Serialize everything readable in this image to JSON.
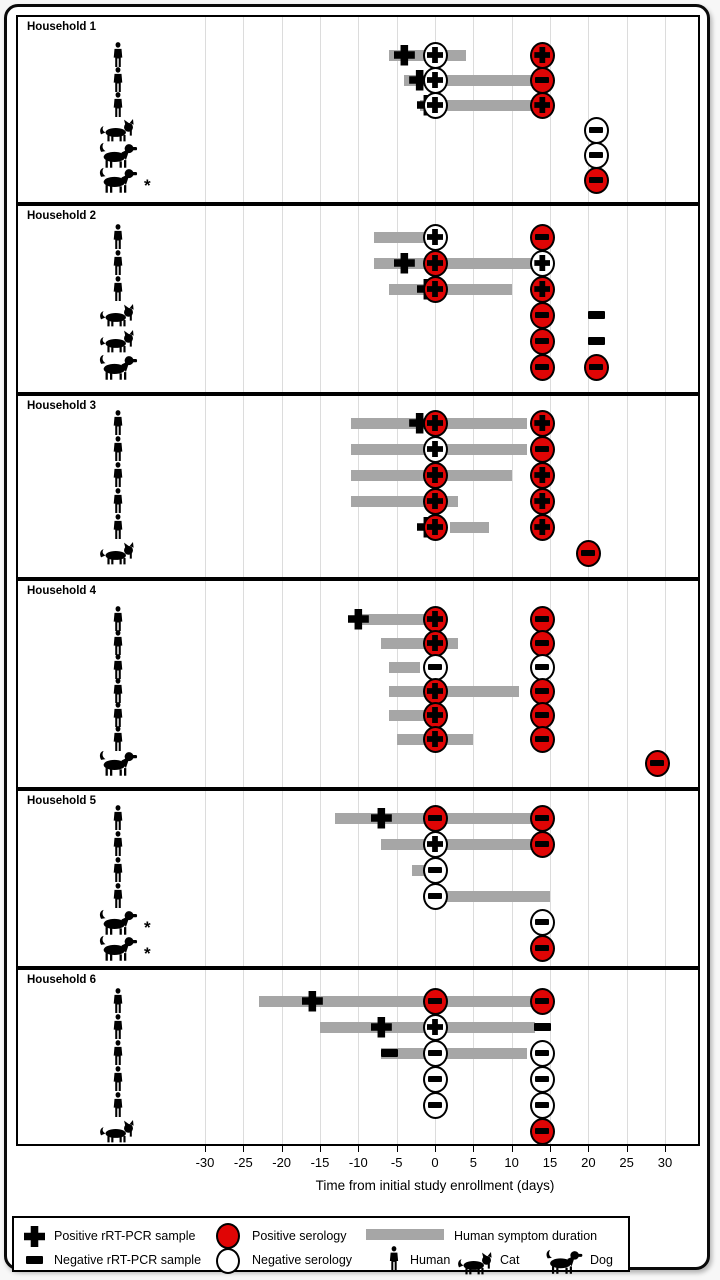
{
  "chart_data": {
    "type": "timeline",
    "axis": {
      "label": "Time from initial study enrollment (days)",
      "ticks": [
        -30,
        -25,
        -20,
        -15,
        -10,
        -5,
        0,
        5,
        10,
        15,
        20,
        25,
        30
      ],
      "range": [
        -30,
        30
      ],
      "grid": true
    },
    "marker_types": {
      "pcr_pos": "Positive rRT-PCR sample (black cross)",
      "pcr_neg": "Negative rRT-PCR sample (black bar)",
      "sero_pos_pcr_pos": "Positive serology circle containing positive rRT-PCR cross",
      "sero_pos_pcr_neg": "Positive serology circle containing negative rRT-PCR bar",
      "sero_neg_pcr_pos": "Negative serology circle containing positive rRT-PCR cross",
      "sero_neg_pcr_neg": "Negative serology circle containing negative rRT-PCR bar"
    },
    "households": [
      {
        "name": "Household 1",
        "rows": [
          {
            "species": "human",
            "asterisk": false,
            "symptom_days": [
              -6,
              4
            ],
            "markers": [
              {
                "day": -4,
                "type": "pcr_pos"
              },
              {
                "day": 0,
                "type": "sero_neg_pcr_pos"
              },
              {
                "day": 14,
                "type": "sero_pos_pcr_pos"
              }
            ]
          },
          {
            "species": "human",
            "asterisk": false,
            "symptom_days": [
              -4,
              13
            ],
            "markers": [
              {
                "day": -2,
                "type": "pcr_pos"
              },
              {
                "day": 0,
                "type": "sero_neg_pcr_pos"
              },
              {
                "day": 14,
                "type": "sero_pos_pcr_neg"
              }
            ]
          },
          {
            "species": "human",
            "asterisk": false,
            "symptom_days": [
              -2,
              13
            ],
            "markers": [
              {
                "day": -1,
                "type": "pcr_pos"
              },
              {
                "day": 0,
                "type": "sero_neg_pcr_pos"
              },
              {
                "day": 14,
                "type": "sero_pos_pcr_pos"
              }
            ]
          },
          {
            "species": "cat",
            "asterisk": false,
            "symptom_days": null,
            "markers": [
              {
                "day": 21,
                "type": "sero_neg_pcr_neg"
              }
            ]
          },
          {
            "species": "dog",
            "asterisk": false,
            "symptom_days": null,
            "markers": [
              {
                "day": 21,
                "type": "sero_neg_pcr_neg"
              }
            ]
          },
          {
            "species": "dog",
            "asterisk": true,
            "symptom_days": null,
            "markers": [
              {
                "day": 21,
                "type": "sero_pos_pcr_neg"
              }
            ]
          }
        ]
      },
      {
        "name": "Household 2",
        "rows": [
          {
            "species": "human",
            "asterisk": false,
            "symptom_days": [
              -8,
              0
            ],
            "markers": [
              {
                "day": 0,
                "type": "sero_neg_pcr_pos"
              },
              {
                "day": 14,
                "type": "sero_pos_pcr_neg"
              }
            ]
          },
          {
            "species": "human",
            "asterisk": false,
            "symptom_days": [
              -8,
              13
            ],
            "markers": [
              {
                "day": -4,
                "type": "pcr_pos"
              },
              {
                "day": 0,
                "type": "sero_pos_pcr_pos"
              },
              {
                "day": 14,
                "type": "sero_neg_pcr_pos"
              }
            ]
          },
          {
            "species": "human",
            "asterisk": false,
            "symptom_days": [
              -6,
              10
            ],
            "markers": [
              {
                "day": -1,
                "type": "pcr_pos"
              },
              {
                "day": 0,
                "type": "sero_pos_pcr_pos"
              },
              {
                "day": 14,
                "type": "sero_pos_pcr_pos"
              }
            ]
          },
          {
            "species": "cat",
            "asterisk": false,
            "symptom_days": null,
            "markers": [
              {
                "day": 14,
                "type": "sero_pos_pcr_neg"
              },
              {
                "day": 21,
                "type": "pcr_neg"
              }
            ]
          },
          {
            "species": "cat",
            "asterisk": false,
            "symptom_days": null,
            "markers": [
              {
                "day": 14,
                "type": "sero_pos_pcr_neg"
              },
              {
                "day": 21,
                "type": "pcr_neg"
              }
            ]
          },
          {
            "species": "dog",
            "asterisk": false,
            "symptom_days": null,
            "markers": [
              {
                "day": 14,
                "type": "sero_pos_pcr_neg"
              },
              {
                "day": 21,
                "type": "sero_pos_pcr_neg"
              }
            ]
          }
        ]
      },
      {
        "name": "Household 3",
        "rows": [
          {
            "species": "human",
            "asterisk": false,
            "symptom_days": [
              -11,
              12
            ],
            "markers": [
              {
                "day": -2,
                "type": "pcr_pos"
              },
              {
                "day": 0,
                "type": "sero_pos_pcr_pos"
              },
              {
                "day": 14,
                "type": "sero_pos_pcr_pos"
              }
            ]
          },
          {
            "species": "human",
            "asterisk": false,
            "symptom_days": [
              -11,
              12
            ],
            "markers": [
              {
                "day": 0,
                "type": "sero_neg_pcr_pos"
              },
              {
                "day": 14,
                "type": "sero_pos_pcr_neg"
              }
            ]
          },
          {
            "species": "human",
            "asterisk": false,
            "symptom_days": [
              -11,
              10
            ],
            "markers": [
              {
                "day": 0,
                "type": "sero_pos_pcr_pos"
              },
              {
                "day": 14,
                "type": "sero_pos_pcr_pos"
              }
            ]
          },
          {
            "species": "human",
            "asterisk": false,
            "symptom_days": [
              -11,
              3
            ],
            "markers": [
              {
                "day": 0,
                "type": "sero_pos_pcr_pos"
              },
              {
                "day": 14,
                "type": "sero_pos_pcr_pos"
              }
            ]
          },
          {
            "species": "human",
            "asterisk": false,
            "symptom_days": [
              2,
              7
            ],
            "markers": [
              {
                "day": -1,
                "type": "pcr_pos"
              },
              {
                "day": 0,
                "type": "sero_pos_pcr_pos"
              },
              {
                "day": 14,
                "type": "sero_pos_pcr_pos"
              }
            ]
          },
          {
            "species": "cat",
            "asterisk": false,
            "symptom_days": null,
            "markers": [
              {
                "day": 20,
                "type": "sero_pos_pcr_neg"
              }
            ]
          }
        ]
      },
      {
        "name": "Household 4",
        "rows": [
          {
            "species": "human",
            "asterisk": false,
            "symptom_days": [
              -10,
              0
            ],
            "markers": [
              {
                "day": -10,
                "type": "pcr_pos"
              },
              {
                "day": 0,
                "type": "sero_pos_pcr_pos"
              },
              {
                "day": 14,
                "type": "sero_pos_pcr_neg"
              }
            ]
          },
          {
            "species": "human",
            "asterisk": false,
            "symptom_days": [
              -7,
              3
            ],
            "markers": [
              {
                "day": 0,
                "type": "sero_pos_pcr_pos"
              },
              {
                "day": 14,
                "type": "sero_pos_pcr_neg"
              }
            ]
          },
          {
            "species": "human",
            "asterisk": false,
            "symptom_days": [
              -6,
              -2
            ],
            "markers": [
              {
                "day": 0,
                "type": "sero_neg_pcr_neg"
              },
              {
                "day": 14,
                "type": "sero_neg_pcr_neg"
              }
            ]
          },
          {
            "species": "human",
            "asterisk": false,
            "symptom_days": [
              -6,
              11
            ],
            "markers": [
              {
                "day": 0,
                "type": "sero_pos_pcr_pos"
              },
              {
                "day": 14,
                "type": "sero_pos_pcr_neg"
              }
            ]
          },
          {
            "species": "human",
            "asterisk": false,
            "symptom_days": [
              -6,
              0
            ],
            "markers": [
              {
                "day": 0,
                "type": "sero_pos_pcr_pos"
              },
              {
                "day": 14,
                "type": "sero_pos_pcr_neg"
              }
            ]
          },
          {
            "species": "human",
            "asterisk": false,
            "symptom_days": [
              -5,
              5
            ],
            "markers": [
              {
                "day": 0,
                "type": "sero_pos_pcr_pos"
              },
              {
                "day": 14,
                "type": "sero_pos_pcr_neg"
              }
            ]
          },
          {
            "species": "dog",
            "asterisk": false,
            "symptom_days": null,
            "markers": [
              {
                "day": 29,
                "type": "sero_pos_pcr_neg"
              }
            ]
          }
        ]
      },
      {
        "name": "Household 5",
        "rows": [
          {
            "species": "human",
            "asterisk": false,
            "symptom_days": [
              -13,
              13
            ],
            "markers": [
              {
                "day": -7,
                "type": "pcr_pos"
              },
              {
                "day": 0,
                "type": "sero_pos_pcr_neg"
              },
              {
                "day": 14,
                "type": "sero_pos_pcr_neg"
              }
            ]
          },
          {
            "species": "human",
            "asterisk": false,
            "symptom_days": [
              -7,
              13
            ],
            "markers": [
              {
                "day": 0,
                "type": "sero_neg_pcr_pos"
              },
              {
                "day": 14,
                "type": "sero_pos_pcr_neg"
              }
            ]
          },
          {
            "species": "human",
            "asterisk": false,
            "symptom_days": [
              -3,
              0
            ],
            "markers": [
              {
                "day": 0,
                "type": "sero_neg_pcr_neg"
              }
            ]
          },
          {
            "species": "human",
            "asterisk": false,
            "symptom_days": [
              0,
              15
            ],
            "markers": [
              {
                "day": 0,
                "type": "sero_neg_pcr_neg"
              }
            ]
          },
          {
            "species": "dog",
            "asterisk": true,
            "symptom_days": null,
            "markers": [
              {
                "day": 14,
                "type": "sero_neg_pcr_neg"
              }
            ]
          },
          {
            "species": "dog",
            "asterisk": true,
            "symptom_days": null,
            "markers": [
              {
                "day": 14,
                "type": "sero_pos_pcr_neg"
              }
            ]
          }
        ]
      },
      {
        "name": "Household 6",
        "rows": [
          {
            "species": "human",
            "asterisk": false,
            "symptom_days": [
              -23,
              13
            ],
            "markers": [
              {
                "day": -16,
                "type": "pcr_pos"
              },
              {
                "day": 0,
                "type": "sero_pos_pcr_neg"
              },
              {
                "day": 14,
                "type": "sero_pos_pcr_neg"
              }
            ]
          },
          {
            "species": "human",
            "asterisk": false,
            "symptom_days": [
              -15,
              13
            ],
            "markers": [
              {
                "day": -7,
                "type": "pcr_pos"
              },
              {
                "day": 0,
                "type": "sero_neg_pcr_pos"
              },
              {
                "day": 14,
                "type": "pcr_neg"
              }
            ]
          },
          {
            "species": "human",
            "asterisk": false,
            "symptom_days": [
              -7,
              12
            ],
            "markers": [
              {
                "day": -6,
                "type": "pcr_neg"
              },
              {
                "day": 0,
                "type": "sero_neg_pcr_neg"
              },
              {
                "day": 14,
                "type": "sero_neg_pcr_neg"
              }
            ]
          },
          {
            "species": "human",
            "asterisk": false,
            "symptom_days": null,
            "markers": [
              {
                "day": 0,
                "type": "sero_neg_pcr_neg"
              },
              {
                "day": 14,
                "type": "sero_neg_pcr_neg"
              }
            ]
          },
          {
            "species": "human",
            "asterisk": false,
            "symptom_days": null,
            "markers": [
              {
                "day": 0,
                "type": "sero_neg_pcr_neg"
              },
              {
                "day": 14,
                "type": "sero_neg_pcr_neg"
              }
            ]
          },
          {
            "species": "cat",
            "asterisk": false,
            "symptom_days": null,
            "markers": [
              {
                "day": 14,
                "type": "sero_pos_pcr_neg"
              }
            ]
          }
        ]
      }
    ]
  },
  "legend": {
    "items": [
      {
        "icon": "positive-pcr-cross",
        "label": "Positive rRT-PCR sample"
      },
      {
        "icon": "negative-pcr-bar",
        "label": "Negative rRT-PCR sample"
      },
      {
        "icon": "positive-serology-circle",
        "label": "Positive serology"
      },
      {
        "icon": "negative-serology-circle",
        "label": "Negative serology"
      },
      {
        "icon": "symptom-duration-bar",
        "label": "Human symptom duration"
      },
      {
        "icon": "human",
        "label": "Human"
      },
      {
        "icon": "cat",
        "label": "Cat"
      },
      {
        "icon": "dog",
        "label": "Dog"
      }
    ]
  },
  "colors": {
    "positive_red": "#e00505",
    "symptom_bar_gray": "#a6a6a6",
    "gridline_gray": "#dcdcdc",
    "outline_black": "#000000"
  }
}
